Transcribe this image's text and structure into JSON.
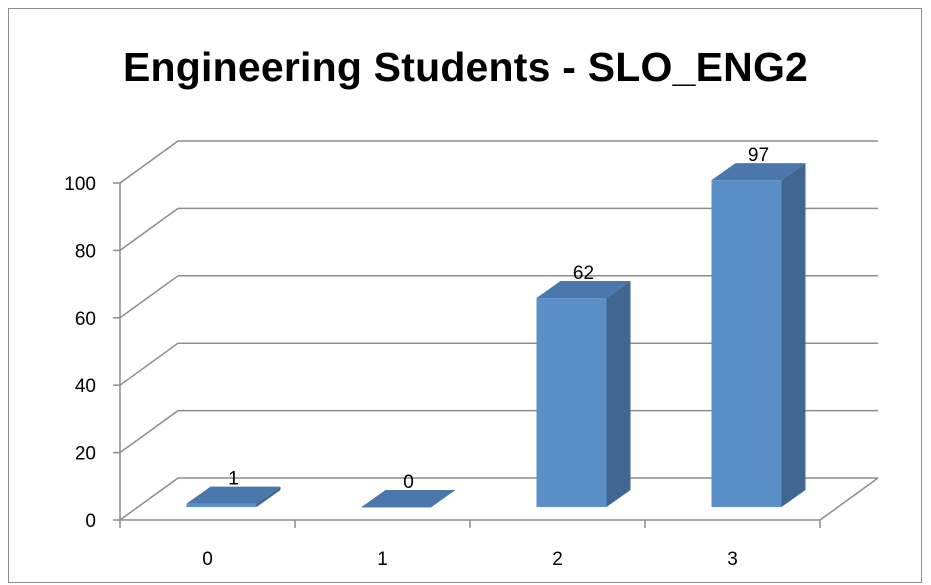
{
  "chart_data": {
    "type": "bar",
    "title": "Engineering Students - SLO_ENG2",
    "categories": [
      "0",
      "1",
      "2",
      "3"
    ],
    "values": [
      1,
      0,
      62,
      97
    ],
    "data_labels": [
      "1",
      "0",
      "62",
      "97"
    ],
    "ylim": [
      0,
      100
    ],
    "yticks": [
      0,
      20,
      40,
      60,
      80,
      100
    ],
    "ytick_labels": [
      "0",
      "20",
      "40",
      "60",
      "80",
      "100"
    ],
    "xlabel": "",
    "ylabel": "",
    "grid": true,
    "legend": "none",
    "style": "3d-column"
  },
  "colors": {
    "bar_front": "#5b8fc7",
    "bar_side": "#416690",
    "bar_top": "#4a78ad",
    "grid": "#8c8c8c",
    "frame": "#8c8c8c"
  }
}
